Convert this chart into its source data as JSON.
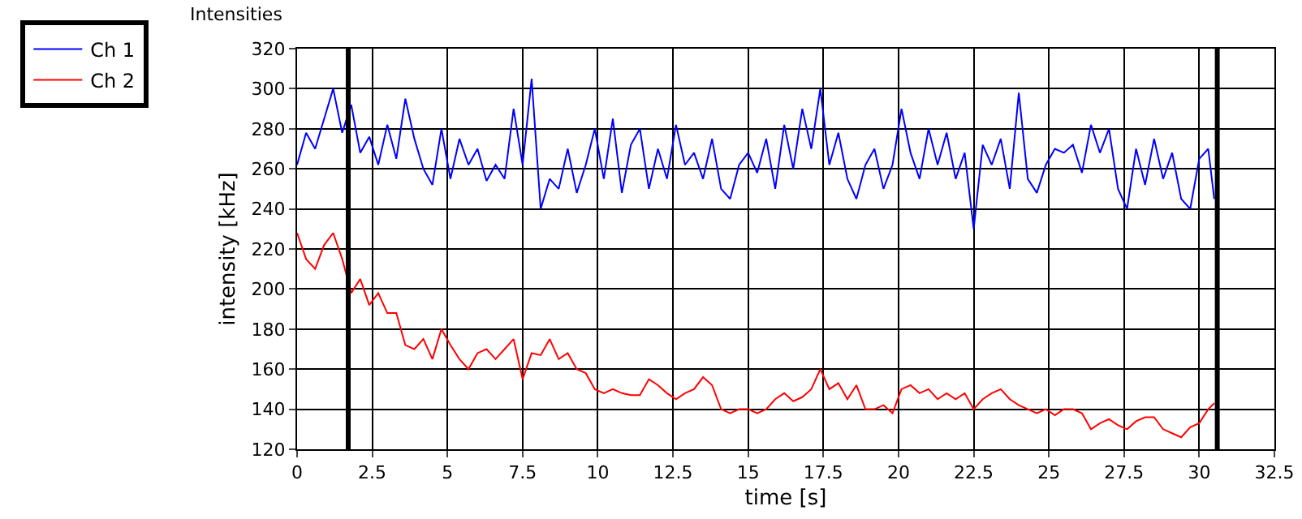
{
  "chart_data": {
    "type": "line",
    "title": "Intensities",
    "xlabel": "time [s]",
    "ylabel": "intensity [kHz]",
    "x": [
      0,
      0.3,
      0.6,
      0.9,
      1.2,
      1.5,
      1.8,
      2.1,
      2.4,
      2.7,
      3.0,
      3.3,
      3.6,
      3.9,
      4.2,
      4.5,
      4.8,
      5.1,
      5.4,
      5.7,
      6.0,
      6.3,
      6.6,
      6.9,
      7.2,
      7.5,
      7.8,
      8.1,
      8.4,
      8.7,
      9.0,
      9.3,
      9.6,
      9.9,
      10.2,
      10.5,
      10.8,
      11.1,
      11.4,
      11.7,
      12.0,
      12.3,
      12.6,
      12.9,
      13.2,
      13.5,
      13.8,
      14.1,
      14.4,
      14.7,
      15.0,
      15.3,
      15.6,
      15.9,
      16.2,
      16.5,
      16.8,
      17.1,
      17.4,
      17.7,
      18.0,
      18.3,
      18.6,
      18.9,
      19.2,
      19.5,
      19.8,
      20.1,
      20.4,
      20.7,
      21.0,
      21.3,
      21.6,
      21.9,
      22.2,
      22.5,
      22.8,
      23.1,
      23.4,
      23.7,
      24.0,
      24.3,
      24.6,
      24.9,
      25.2,
      25.5,
      25.8,
      26.1,
      26.4,
      26.7,
      27.0,
      27.3,
      27.6,
      27.9,
      28.2,
      28.5,
      28.8,
      29.1,
      29.4,
      29.7,
      30.0,
      30.3,
      30.5
    ],
    "series": [
      {
        "name": "Ch 1",
        "color": "#0000ff",
        "values": [
          262,
          278,
          270,
          285,
          300,
          278,
          292,
          268,
          276,
          262,
          282,
          265,
          295,
          275,
          260,
          252,
          280,
          255,
          275,
          262,
          270,
          254,
          262,
          255,
          290,
          262,
          305,
          240,
          255,
          250,
          270,
          248,
          262,
          280,
          255,
          285,
          248,
          272,
          280,
          250,
          270,
          255,
          282,
          262,
          268,
          255,
          275,
          250,
          245,
          262,
          268,
          258,
          275,
          250,
          282,
          260,
          290,
          270,
          300,
          262,
          278,
          255,
          245,
          262,
          270,
          250,
          262,
          290,
          268,
          255,
          280,
          262,
          278,
          255,
          268,
          230,
          272,
          262,
          275,
          250,
          298,
          255,
          248,
          262,
          270,
          268,
          272,
          258,
          282,
          268,
          280,
          250,
          240,
          270,
          252,
          275,
          255,
          268,
          245,
          240,
          265,
          270,
          245
        ]
      },
      {
        "name": "Ch 2",
        "color": "#ff0000",
        "values": [
          228,
          215,
          210,
          222,
          228,
          215,
          198,
          205,
          192,
          198,
          188,
          188,
          172,
          170,
          175,
          165,
          180,
          172,
          165,
          160,
          168,
          170,
          165,
          170,
          175,
          155,
          168,
          167,
          175,
          165,
          168,
          160,
          158,
          150,
          148,
          150,
          148,
          147,
          147,
          155,
          152,
          148,
          145,
          148,
          150,
          156,
          152,
          140,
          138,
          140,
          140,
          138,
          140,
          145,
          148,
          144,
          146,
          150,
          160,
          150,
          153,
          145,
          152,
          140,
          140,
          142,
          138,
          150,
          152,
          148,
          150,
          145,
          148,
          145,
          148,
          140,
          145,
          148,
          150,
          145,
          142,
          140,
          138,
          140,
          137,
          140,
          140,
          138,
          130,
          133,
          135,
          132,
          130,
          134,
          136,
          136,
          130,
          128,
          126,
          131,
          133,
          140,
          143
        ]
      }
    ],
    "xlim": [
      0,
      32.5
    ],
    "xticks": [
      0,
      2.5,
      5,
      7.5,
      10,
      12.5,
      15,
      17.5,
      20,
      22.5,
      25,
      27.5,
      30,
      32.5
    ],
    "ylim": [
      120,
      320
    ],
    "yticks": [
      120,
      140,
      160,
      180,
      200,
      220,
      240,
      260,
      280,
      300,
      320
    ],
    "grid": true,
    "legend": "top left",
    "line_style": "solid",
    "marker": "none",
    "ref_lines": [
      {
        "axis": "x",
        "value": 1.7,
        "color": "#000000"
      },
      {
        "axis": "x",
        "value": 30.6,
        "color": "#000000"
      }
    ]
  }
}
